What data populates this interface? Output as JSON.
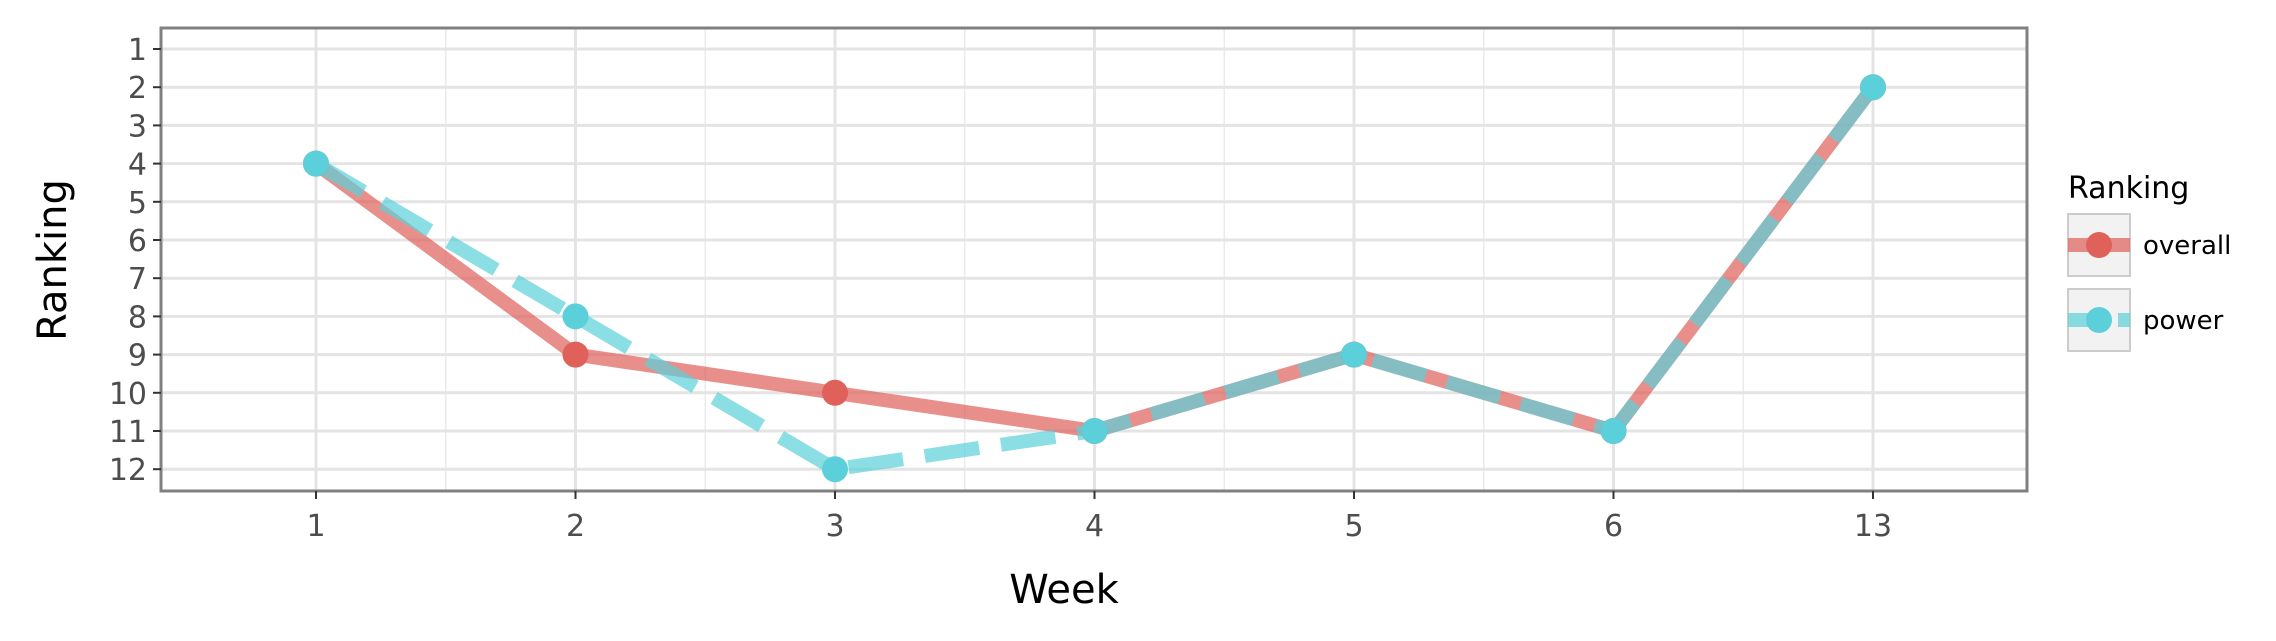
{
  "chart_data": {
    "type": "line",
    "xlabel": "Week",
    "ylabel": "Ranking",
    "categories": [
      "1",
      "2",
      "3",
      "4",
      "5",
      "6",
      "13"
    ],
    "y_ticks": [
      "1",
      "2",
      "3",
      "4",
      "5",
      "6",
      "7",
      "8",
      "9",
      "10",
      "11",
      "12"
    ],
    "ylim": [
      1,
      12
    ],
    "y_reversed": true,
    "grid": true,
    "legend": {
      "title": "Ranking",
      "placement": "right"
    },
    "series": [
      {
        "name": "overall",
        "color": "#e0605a",
        "line_style": "solid",
        "values": [
          4,
          9,
          10,
          11,
          9,
          11,
          2
        ]
      },
      {
        "name": "power",
        "color": "#5bd0da",
        "line_style": "dashed",
        "values": [
          4,
          8,
          12,
          11,
          9,
          11,
          2
        ]
      }
    ]
  }
}
